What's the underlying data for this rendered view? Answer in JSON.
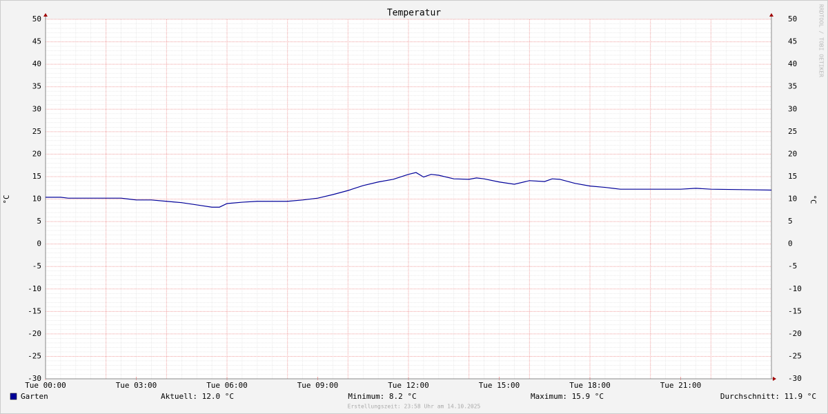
{
  "chart_data": {
    "type": "line",
    "title": "Temperatur",
    "y_label": "°C",
    "y2_label": "°C",
    "watermark": "RRDTOOL / TOBI OETIKER",
    "footer": "Erstellungszeit: 23:58 Uhr am 14.10.2025",
    "x": [
      0,
      0.5,
      0.75,
      1,
      1.5,
      2,
      2.5,
      2.75,
      3,
      3.5,
      4,
      4.5,
      5,
      5.5,
      5.75,
      6,
      6.5,
      7,
      7.5,
      8,
      8.5,
      9,
      9.5,
      10,
      10.5,
      11,
      11.5,
      12,
      12.25,
      12.5,
      12.75,
      13,
      13.5,
      14,
      14.25,
      14.5,
      15,
      15.5,
      16,
      16.5,
      16.75,
      17,
      17.5,
      18,
      18.5,
      19,
      20,
      21,
      21.5,
      22,
      23,
      24
    ],
    "series": [
      {
        "name": "Garten",
        "color": "#000099",
        "values": [
          10.4,
          10.4,
          10.2,
          10.2,
          10.2,
          10.2,
          10.2,
          10.0,
          9.8,
          9.8,
          9.5,
          9.2,
          8.7,
          8.2,
          8.2,
          9.0,
          9.3,
          9.5,
          9.5,
          9.5,
          9.8,
          10.2,
          11.0,
          11.9,
          13.0,
          13.8,
          14.4,
          15.5,
          15.9,
          14.9,
          15.5,
          15.3,
          14.5,
          14.4,
          14.7,
          14.5,
          13.8,
          13.3,
          14.1,
          13.9,
          14.5,
          14.4,
          13.5,
          12.9,
          12.6,
          12.2,
          12.2,
          12.2,
          12.4,
          12.2,
          12.1,
          12.0
        ]
      }
    ],
    "legend_stats": [
      "Aktuell: 12.0 °C",
      "Minimum: 8.2 °C",
      "Maximum: 15.9 °C",
      "Durchschnitt: 11.9 °C"
    ],
    "xlim": [
      0,
      24
    ],
    "xticks": [
      {
        "value": 0,
        "label": "Tue 00:00"
      },
      {
        "value": 3,
        "label": "Tue 03:00"
      },
      {
        "value": 6,
        "label": "Tue 06:00"
      },
      {
        "value": 9,
        "label": "Tue 09:00"
      },
      {
        "value": 12,
        "label": "Tue 12:00"
      },
      {
        "value": 15,
        "label": "Tue 15:00"
      },
      {
        "value": 18,
        "label": "Tue 18:00"
      },
      {
        "value": 21,
        "label": "Tue 21:00"
      }
    ],
    "ylim": [
      -30,
      50
    ],
    "yticks": [
      -30,
      -25,
      -20,
      -15,
      -10,
      -5,
      0,
      5,
      10,
      15,
      20,
      25,
      30,
      35,
      40,
      45,
      50
    ],
    "y_minor_step": 1,
    "x_minor_step": 0.5,
    "x_major_grid_step": 2,
    "grid": true
  }
}
